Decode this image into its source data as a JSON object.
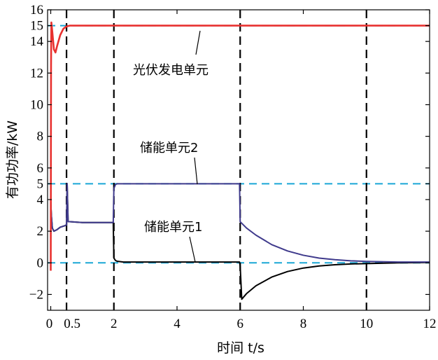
{
  "chart_data": {
    "type": "line",
    "xlabel": "时间 t/s",
    "ylabel": "有功功率/kW",
    "xlim": [
      -0.1,
      12
    ],
    "ylim": [
      -3,
      16
    ],
    "x_ticks": [
      {
        "value": 0,
        "label": "0"
      },
      {
        "value": 0.5,
        "label": "0.5"
      },
      {
        "value": 2,
        "label": "2"
      },
      {
        "value": 4,
        "label": "4"
      },
      {
        "value": 6,
        "label": "6"
      },
      {
        "value": 8,
        "label": "8"
      },
      {
        "value": 10,
        "label": "10"
      },
      {
        "value": 12,
        "label": "12"
      }
    ],
    "y_ticks": [
      {
        "value": -2,
        "label": "−2"
      },
      {
        "value": 0,
        "label": "0"
      },
      {
        "value": 2,
        "label": "2"
      },
      {
        "value": 4,
        "label": "4"
      },
      {
        "value": 5,
        "label": "5"
      },
      {
        "value": 6,
        "label": "6"
      },
      {
        "value": 8,
        "label": "8"
      },
      {
        "value": 10,
        "label": "10"
      },
      {
        "value": 12,
        "label": "12"
      },
      {
        "value": 14,
        "label": "14"
      },
      {
        "value": 15,
        "label": "15"
      },
      {
        "value": 16,
        "label": "16"
      }
    ],
    "vertical_dashed_lines": [
      0.5,
      2,
      6,
      10
    ],
    "horizontal_reference_lines": [
      15,
      5,
      0
    ],
    "colors": {
      "pv": "#e8312f",
      "storage2": "#3f3a8c",
      "storage1": "#000000",
      "reference": "#1aa7d6",
      "vline": "#000000"
    },
    "series": [
      {
        "name": "光伏发电单元",
        "x": [
          0,
          0.01,
          0.02,
          0.05,
          0.1,
          0.15,
          0.2,
          0.3,
          0.4,
          0.5,
          0.6,
          0.8,
          1,
          2,
          4,
          6,
          8,
          10,
          12
        ],
        "y": [
          -0.5,
          12.5,
          15.2,
          14.6,
          13.5,
          13.3,
          13.7,
          14.4,
          14.8,
          14.95,
          15,
          15,
          15,
          15,
          15,
          15,
          15,
          15,
          15
        ]
      },
      {
        "name": "储能单元2",
        "x": [
          0,
          0.02,
          0.05,
          0.1,
          0.2,
          0.3,
          0.45,
          0.5,
          0.52,
          0.55,
          0.6,
          1,
          1.5,
          1.98,
          2.0,
          2.05,
          2.1,
          2.3,
          3,
          4,
          5,
          5.98,
          6.0,
          6.2,
          6.5,
          7,
          7.5,
          8,
          8.5,
          9,
          9.5,
          10,
          11,
          12
        ],
        "y": [
          3.9,
          3.0,
          2.2,
          2.0,
          2.1,
          2.25,
          2.35,
          2.4,
          5.0,
          2.6,
          2.6,
          2.55,
          2.55,
          2.55,
          4.7,
          4.95,
          5.0,
          5.0,
          5.0,
          5.0,
          5.0,
          5.0,
          2.6,
          2.2,
          1.75,
          1.15,
          0.75,
          0.48,
          0.3,
          0.2,
          0.13,
          0.09,
          0.05,
          0.05
        ]
      },
      {
        "name": "储能单元1",
        "x": [
          0,
          0.02,
          0.05,
          0.1,
          0.2,
          0.3,
          0.45,
          0.5,
          0.52,
          0.55,
          0.6,
          1,
          1.5,
          1.98,
          2.0,
          2.05,
          2.1,
          2.3,
          3,
          4,
          5,
          5.98,
          6.0,
          6.05,
          6.2,
          6.5,
          7,
          7.5,
          8,
          8.5,
          9,
          9.5,
          10,
          11,
          12
        ],
        "y": [
          3.9,
          3.0,
          2.2,
          2.0,
          2.1,
          2.25,
          2.35,
          2.4,
          5.0,
          2.6,
          2.6,
          2.55,
          2.55,
          2.55,
          0.3,
          0.15,
          0.1,
          0.05,
          0.05,
          0.05,
          0.05,
          0.05,
          -0.2,
          -2.3,
          -1.95,
          -1.45,
          -0.9,
          -0.55,
          -0.33,
          -0.2,
          -0.12,
          -0.07,
          -0.05,
          0.0,
          0.02
        ]
      }
    ]
  },
  "annotations": {
    "pv": "光伏发电单元",
    "storage2": "储能单元2",
    "storage1": "储能单元1"
  }
}
